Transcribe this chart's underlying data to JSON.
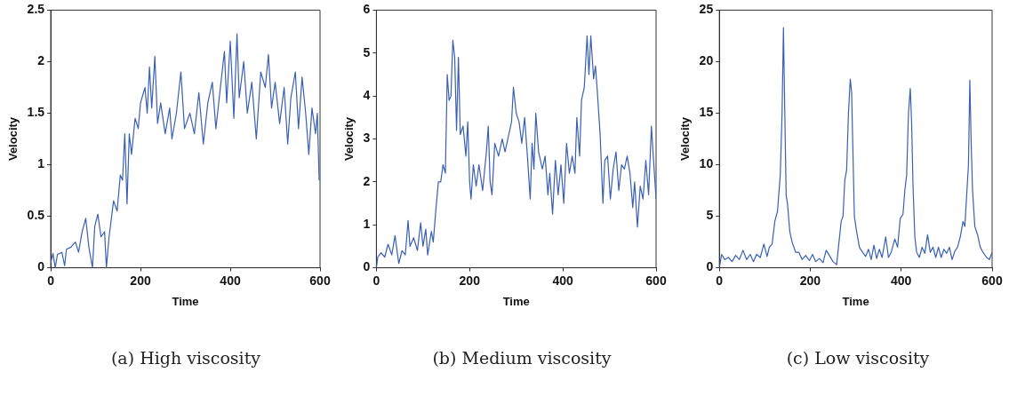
{
  "chart_data": [
    {
      "type": "line",
      "title": "(a) High viscosity",
      "xlabel": "Time",
      "ylabel": "Velocity",
      "color": "#3a5fb5",
      "xlim": [
        0,
        600
      ],
      "xticks": [
        0,
        200,
        400,
        600
      ],
      "ylim": [
        0,
        2.5
      ],
      "yticks": [
        0,
        0.5,
        1,
        1.5,
        2,
        2.5
      ],
      "x": [
        0,
        5,
        10,
        15,
        25,
        31,
        35,
        45,
        55,
        62,
        70,
        78,
        85,
        93,
        98,
        105,
        112,
        120,
        124,
        130,
        140,
        148,
        155,
        160,
        165,
        170,
        175,
        180,
        188,
        195,
        200,
        210,
        215,
        220,
        225,
        232,
        238,
        245,
        255,
        265,
        270,
        280,
        290,
        298,
        310,
        320,
        330,
        340,
        350,
        360,
        368,
        378,
        387,
        392,
        400,
        408,
        415,
        420,
        430,
        438,
        448,
        458,
        468,
        478,
        485,
        492,
        500,
        510,
        520,
        528,
        535,
        545,
        552,
        560,
        568,
        575,
        582,
        590,
        594,
        598
      ],
      "values": [
        0.05,
        0.14,
        0,
        0.13,
        0.15,
        0.02,
        0.18,
        0.2,
        0.25,
        0.15,
        0.35,
        0.48,
        0.2,
        0,
        0.4,
        0.52,
        0.3,
        0.35,
        0,
        0.3,
        0.65,
        0.55,
        0.9,
        0.85,
        1.3,
        0.62,
        1.3,
        1.1,
        1.45,
        1.35,
        1.6,
        1.75,
        1.5,
        1.95,
        1.55,
        2.05,
        1.4,
        1.6,
        1.3,
        1.55,
        1.25,
        1.5,
        1.9,
        1.35,
        1.5,
        1.3,
        1.7,
        1.2,
        1.6,
        1.8,
        1.35,
        1.75,
        2.1,
        1.6,
        2.2,
        1.45,
        2.27,
        1.65,
        2.0,
        1.5,
        1.8,
        1.25,
        1.9,
        1.75,
        2.07,
        1.55,
        1.8,
        1.4,
        1.75,
        1.2,
        1.65,
        1.9,
        1.35,
        1.85,
        1.5,
        1.1,
        1.55,
        1.3,
        1.5,
        0.85
      ]
    },
    {
      "type": "line",
      "title": "(b) Medium viscosity",
      "xlabel": "Time",
      "ylabel": "Velocity",
      "color": "#3a5fb5",
      "xlim": [
        0,
        600
      ],
      "xticks": [
        0,
        200,
        400,
        600
      ],
      "ylim": [
        0,
        6
      ],
      "yticks": [
        0,
        1,
        2,
        3,
        4,
        5,
        6
      ],
      "x": [
        0,
        3,
        10,
        18,
        25,
        33,
        40,
        48,
        55,
        62,
        68,
        72,
        80,
        88,
        95,
        100,
        106,
        110,
        118,
        122,
        128,
        133,
        138,
        143,
        148,
        152,
        156,
        160,
        164,
        168,
        172,
        176,
        180,
        186,
        192,
        196,
        200,
        203,
        208,
        214,
        220,
        228,
        236,
        240,
        244,
        248,
        254,
        262,
        270,
        276,
        284,
        290,
        294,
        300,
        306,
        312,
        318,
        324,
        330,
        334,
        338,
        342,
        348,
        356,
        362,
        368,
        372,
        378,
        384,
        390,
        396,
        402,
        408,
        414,
        420,
        426,
        430,
        436,
        440,
        446,
        452,
        456,
        460,
        466,
        470,
        474,
        480,
        486,
        490,
        496,
        502,
        508,
        514,
        520,
        526,
        532,
        538,
        544,
        550,
        554,
        560,
        566,
        572,
        578,
        584,
        590,
        594,
        600
      ],
      "values": [
        0,
        0.25,
        0.35,
        0.25,
        0.55,
        0.3,
        0.75,
        0.1,
        0.4,
        0.3,
        1.1,
        0.5,
        0.7,
        0.4,
        1.05,
        0.5,
        0.9,
        0.3,
        0.85,
        0.6,
        1.4,
        2.0,
        2.0,
        2.4,
        2.2,
        4.5,
        3.9,
        4.0,
        5.3,
        4.9,
        3.2,
        4.9,
        3.1,
        3.3,
        2.6,
        3.4,
        2.0,
        1.6,
        2.4,
        1.9,
        2.4,
        1.8,
        2.7,
        3.3,
        2.0,
        1.7,
        2.9,
        2.6,
        3.0,
        2.7,
        3.1,
        3.4,
        4.2,
        3.6,
        3.4,
        2.9,
        3.5,
        2.6,
        1.6,
        2.9,
        2.3,
        3.6,
        2.7,
        2.3,
        2.6,
        1.7,
        2.2,
        1.25,
        2.5,
        1.7,
        2.4,
        1.5,
        2.9,
        2.2,
        2.6,
        2.2,
        3.5,
        2.6,
        3.9,
        4.2,
        5.4,
        4.5,
        5.4,
        4.4,
        4.7,
        4.1,
        3.1,
        1.5,
        2.5,
        2.6,
        1.6,
        2.3,
        2.7,
        1.8,
        2.4,
        2.3,
        2.6,
        2.2,
        1.4,
        2.0,
        0.95,
        1.9,
        1.6,
        2.5,
        1.7,
        3.3,
        2.6,
        1.6
      ]
    },
    {
      "type": "line",
      "title": "(c) Low viscosity",
      "xlabel": "Time",
      "ylabel": "Velocity",
      "color": "#3a5fb5",
      "xlim": [
        0,
        600
      ],
      "xticks": [
        0,
        200,
        400,
        600
      ],
      "ylim": [
        0,
        25
      ],
      "yticks": [
        0,
        5,
        10,
        15,
        20,
        25
      ],
      "x": [
        0,
        5,
        12,
        20,
        28,
        36,
        44,
        52,
        60,
        68,
        75,
        82,
        90,
        98,
        105,
        110,
        116,
        122,
        128,
        134,
        138,
        141,
        144,
        147,
        150,
        155,
        160,
        168,
        175,
        182,
        190,
        198,
        205,
        212,
        220,
        228,
        235,
        242,
        250,
        258,
        262,
        268,
        272,
        276,
        280,
        284,
        288,
        291,
        294,
        297,
        302,
        308,
        315,
        322,
        328,
        334,
        340,
        346,
        352,
        358,
        366,
        372,
        378,
        386,
        392,
        398,
        404,
        408,
        412,
        416,
        420,
        423,
        426,
        430,
        434,
        440,
        446,
        452,
        458,
        464,
        470,
        476,
        482,
        488,
        494,
        500,
        506,
        512,
        518,
        524,
        530,
        536,
        540,
        544,
        548,
        551,
        554,
        557,
        562,
        568,
        574,
        580,
        588,
        594,
        600
      ],
      "values": [
        0,
        1.3,
        0.8,
        1.0,
        0.6,
        1.2,
        0.8,
        1.7,
        0.8,
        1.3,
        0.6,
        1.3,
        1.0,
        2.3,
        1.1,
        2.0,
        2.3,
        4.5,
        5.5,
        9,
        15,
        23.3,
        15,
        7,
        6.2,
        3.5,
        2.5,
        1.5,
        1.5,
        0.8,
        1.2,
        0.7,
        1.3,
        0.6,
        0.9,
        0.5,
        1.7,
        1.2,
        0.6,
        0.3,
        2.0,
        4.5,
        5,
        8.5,
        9.5,
        15,
        18.3,
        17,
        11,
        5,
        3.5,
        2.0,
        1.5,
        1.1,
        1.8,
        0.8,
        2.2,
        0.9,
        1.8,
        1.0,
        3.0,
        1.0,
        1.5,
        2.8,
        2.0,
        4.8,
        5.2,
        7.5,
        9,
        15,
        17.4,
        14,
        8,
        3,
        1.5,
        1.0,
        2.0,
        1.4,
        3.2,
        1.5,
        2.0,
        1.0,
        2.0,
        1.0,
        1.8,
        1.4,
        2.0,
        0.8,
        1.6,
        2.0,
        3.0,
        4.5,
        4.0,
        7,
        10,
        18.2,
        12,
        7.5,
        4.0,
        3.2,
        2.0,
        1.5,
        1.0,
        0.8,
        1.5
      ]
    }
  ]
}
